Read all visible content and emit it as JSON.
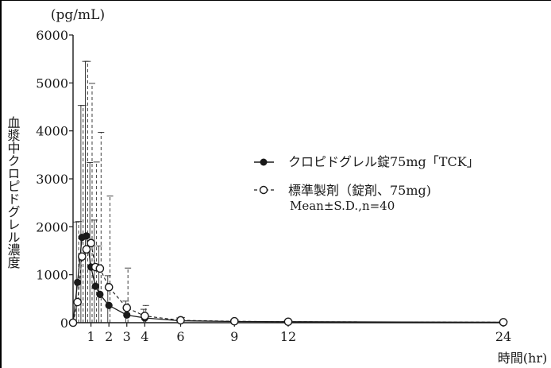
{
  "chart_data": {
    "type": "line",
    "y_unit": "(pg/mL)",
    "ylabel": "血漿中クロピドグレル濃度",
    "xlabel": "時間(hr)",
    "xlim": [
      0,
      24
    ],
    "ylim": [
      0,
      6000
    ],
    "y_ticks": [
      0,
      1000,
      2000,
      3000,
      4000,
      5000,
      6000
    ],
    "x_ticks": [
      1,
      2,
      3,
      4,
      6,
      9,
      12,
      24
    ],
    "y_tick_labels": [
      "0",
      "1000",
      "2000",
      "3000",
      "4000",
      "5000",
      "6000"
    ],
    "x_tick_labels": [
      "1",
      "2",
      "3",
      "4",
      "6",
      "9",
      "12",
      "24"
    ],
    "series": [
      {
        "name": "クロピドグレル錠75mg「TCK」",
        "marker": "filled-circle",
        "line_style": "solid",
        "color": "#1a1a1a",
        "points": [
          {
            "x": 0,
            "y": 0,
            "sd": 0
          },
          {
            "x": 0.25,
            "y": 840,
            "sd": 1260
          },
          {
            "x": 0.5,
            "y": 1780,
            "sd": 2750
          },
          {
            "x": 0.75,
            "y": 1810,
            "sd": 3640
          },
          {
            "x": 1,
            "y": 1160,
            "sd": 2180
          },
          {
            "x": 1.25,
            "y": 760,
            "sd": 1380
          },
          {
            "x": 1.5,
            "y": 590,
            "sd": 1010
          },
          {
            "x": 2,
            "y": 360,
            "sd": 620
          },
          {
            "x": 3,
            "y": 160,
            "sd": 290
          },
          {
            "x": 4,
            "y": 100,
            "sd": 180
          },
          {
            "x": 6,
            "y": 40,
            "sd": 60
          },
          {
            "x": 9,
            "y": 25,
            "sd": 30
          },
          {
            "x": 12,
            "y": 20,
            "sd": 20
          },
          {
            "x": 24,
            "y": 10,
            "sd": 10
          }
        ]
      },
      {
        "name": "標準製剤（錠剤、75mg)",
        "marker": "open-circle",
        "line_style": "dashed",
        "color": "#1a1a1a",
        "points": [
          {
            "x": 0,
            "y": 0,
            "sd": 0
          },
          {
            "x": 0.25,
            "y": 430,
            "sd": 1680
          },
          {
            "x": 0.5,
            "y": 1380,
            "sd": 3150
          },
          {
            "x": 0.75,
            "y": 1530,
            "sd": 3920
          },
          {
            "x": 1,
            "y": 1660,
            "sd": 3330
          },
          {
            "x": 1.25,
            "y": 1160,
            "sd": 2190
          },
          {
            "x": 1.5,
            "y": 1130,
            "sd": 2840
          },
          {
            "x": 2,
            "y": 740,
            "sd": 1900
          },
          {
            "x": 3,
            "y": 310,
            "sd": 830
          },
          {
            "x": 4,
            "y": 140,
            "sd": 220
          },
          {
            "x": 6,
            "y": 50,
            "sd": 60
          },
          {
            "x": 9,
            "y": 30,
            "sd": 30
          },
          {
            "x": 12,
            "y": 20,
            "sd": 20
          },
          {
            "x": 24,
            "y": 10,
            "sd": 10
          }
        ]
      }
    ],
    "legend_note": "Mean±S.D.,n=40",
    "legend_position": "right-center",
    "grid": false
  }
}
